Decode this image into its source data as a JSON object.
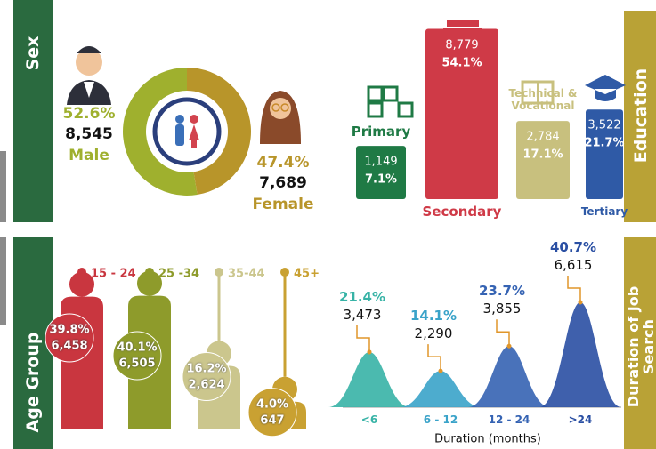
{
  "chart_data": [
    {
      "type": "donut",
      "title": "Sex",
      "categories": [
        "Male",
        "Female"
      ],
      "values": [
        52.6,
        47.4
      ],
      "value_labels": [
        "52.6%",
        "47.4%"
      ],
      "counts": [
        8545,
        7689
      ],
      "count_labels": [
        "8,545",
        "7,689"
      ],
      "colors": [
        "#9fb02e",
        "#b8952a"
      ]
    },
    {
      "type": "bar",
      "title": "Education",
      "categories": [
        "Primary",
        "Secondary",
        "Technical & Vocational",
        "Tertiary"
      ],
      "values": [
        7.1,
        54.1,
        17.1,
        21.7
      ],
      "value_labels": [
        "7.1%",
        "54.1%",
        "17.1%",
        "21.7%"
      ],
      "counts": [
        1149,
        8779,
        2784,
        3522
      ],
      "count_labels": [
        "1,149",
        "8,779",
        "2,784",
        "3,522"
      ],
      "colors": [
        "#1f7a45",
        "#cf3a47",
        "#c8c07e",
        "#2f5aa6"
      ]
    },
    {
      "type": "figure",
      "title": "Age Group",
      "categories": [
        "15 - 24",
        "25 -34",
        "35-44",
        "45+"
      ],
      "values": [
        39.8,
        40.1,
        16.2,
        4.0
      ],
      "value_labels": [
        "39.8%",
        "40.1%",
        "16.2%",
        "4.0%"
      ],
      "counts": [
        6458,
        6505,
        2624,
        647
      ],
      "count_labels": [
        "6,458",
        "6,505",
        "2,624",
        "647"
      ],
      "colors": [
        "#c9363f",
        "#8e9b2b",
        "#cbc68d",
        "#c9a132"
      ]
    },
    {
      "type": "area",
      "title": "Duration of Job Search",
      "x_label": "Duration (months)",
      "categories": [
        "<6",
        "6 - 12",
        "12 - 24",
        ">24"
      ],
      "values": [
        21.4,
        14.1,
        23.7,
        40.7
      ],
      "value_labels": [
        "21.4%",
        "14.1%",
        "23.7%",
        "40.7%"
      ],
      "counts": [
        3473,
        2290,
        3855,
        6615
      ],
      "count_labels": [
        "3,473",
        "2,290",
        "3,855",
        "6,615"
      ],
      "colors": [
        "#37b3a6",
        "#3aa3c9",
        "#3563b3",
        "#2a4fa3"
      ]
    }
  ]
}
